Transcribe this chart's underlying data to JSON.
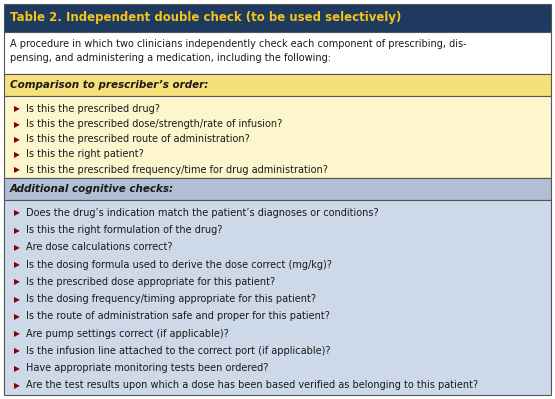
{
  "title": "Table 2. Independent double check (to be used selectively)",
  "title_bg": "#1e3a5f",
  "title_fg": "#f5c518",
  "intro_text": "A procedure in which two clinicians independently check each component of prescribing, dis-\npensing, and administering a medication, including the following:",
  "intro_bg": "#ffffff",
  "section1_header": "Comparison to prescriber’s order:",
  "section1_bg": "#fdf5cc",
  "section1_header_bg": "#f5e07a",
  "section1_items": [
    "Is this the prescribed drug?",
    "Is this the prescribed dose/strength/rate of infusion?",
    "Is this the prescribed route of administration?",
    "Is this the right patient?",
    "Is this the prescribed frequency/time for drug administration?"
  ],
  "section2_header": "Additional cognitive checks:",
  "section2_bg": "#cdd8e8",
  "section2_header_bg": "#b0bfd4",
  "section2_items": [
    "Does the drug’s indication match the patient’s diagnoses or conditions?",
    "Is this the right formulation of the drug?",
    "Are dose calculations correct?",
    "Is the dosing formula used to derive the dose correct (mg/kg)?",
    "Is the prescribed dose appropriate for this patient?",
    "Is the dosing frequency/timing appropriate for this patient?",
    "Is the route of administration safe and proper for this patient?",
    "Are pump settings correct (if applicable)?",
    "Is the infusion line attached to the correct port (if applicable)?",
    "Have appropriate monitoring tests been ordered?",
    "Are the test results upon which a dose has been based verified as belonging to this patient?"
  ],
  "bullet_color": "#8b0000",
  "text_color": "#1a1a1a",
  "border_color": "#555555",
  "fig_width": 5.55,
  "fig_height": 3.99,
  "dpi": 100
}
